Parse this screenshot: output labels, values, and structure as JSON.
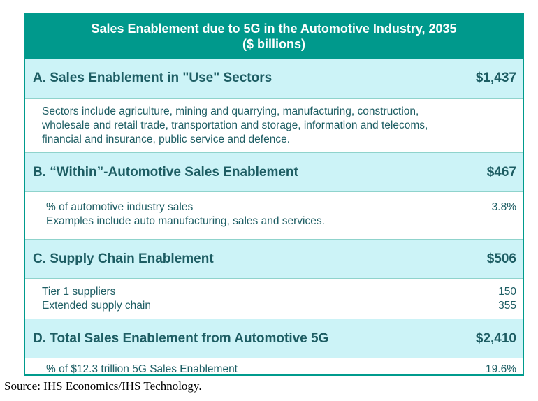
{
  "title": {
    "line1": "Sales Enablement due to 5G in the Automotive Industry, 2035",
    "line2": "($ billions)"
  },
  "sections": [
    {
      "label": "A. Sales Enablement in \"Use\" Sectors",
      "value": "$1,437",
      "detail_lines": [
        "Sectors include agriculture, mining and quarrying, manufacturing, construction,",
        "wholesale and retail trade, transportation and storage, information and telecoms,",
        "financial and insurance, public service and defence."
      ]
    },
    {
      "label": "B. “Within”-Automotive Sales Enablement",
      "value": "$467",
      "detail_lines": [
        "% of automotive industry sales",
        "Examples include auto manufacturing, sales and services."
      ],
      "detail_values": [
        "3.8%"
      ]
    },
    {
      "label": "C. Supply Chain Enablement",
      "value": "$506",
      "detail_lines": [
        "Tier 1 suppliers",
        "Extended supply chain"
      ],
      "detail_values": [
        "150",
        "355"
      ]
    },
    {
      "label": "D. Total Sales Enablement from Automotive 5G",
      "value": "$2,410",
      "detail_lines": [
        "% of $12.3 trillion 5G Sales Enablement"
      ],
      "detail_values": [
        "19.6%"
      ]
    }
  ],
  "source": "Source: IHS Economics/IHS Technology."
}
